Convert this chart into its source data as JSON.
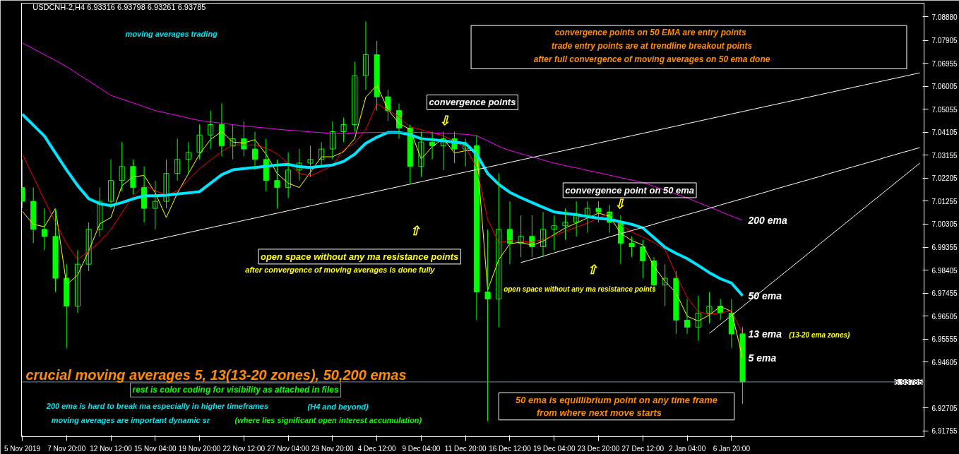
{
  "chart_data": {
    "type": "candlestick",
    "title": "USDCNH-2,H4  6.93316 6.93798 6.93261 6.93785",
    "color": "#00ff00",
    "categories": [
      "5 Nov 2019",
      null,
      null,
      null,
      "7 Nov 20:00",
      null,
      null,
      null,
      "12 Nov 12:00",
      null,
      null,
      null,
      "15 Nov 04:00",
      null,
      null,
      null,
      "19 Nov 20:00",
      null,
      null,
      null,
      "22 Nov 12:00",
      null,
      null,
      null,
      "27 Nov 04:00",
      null,
      null,
      null,
      "29 Nov 20:00",
      null,
      null,
      null,
      "4 Dec 12:00",
      null,
      null,
      null,
      "9 Dec 04:00",
      null,
      null,
      null,
      "11 Dec 20:00",
      null,
      null,
      null,
      "16 Dec 12:00",
      null,
      null,
      null,
      "19 Dec 04:00",
      null,
      null,
      null,
      "23 Dec 20:00",
      null,
      null,
      null,
      "27 Dec 12:00",
      null,
      null,
      null,
      "2 Jan 04:00",
      null,
      null,
      null,
      "6 Jan 20:00",
      null,
      null,
      null,
      null,
      null,
      null,
      null,
      null,
      null,
      null,
      null,
      null,
      null,
      null,
      null,
      null,
      null
    ],
    "ohlc": [
      [
        7.0182,
        7.0298,
        7.0096,
        7.0125
      ],
      [
        7.0125,
        7.0182,
        6.9952,
        7.0009
      ],
      [
        7.0009,
        7.0096,
        6.9923,
        6.998
      ],
      [
        6.998,
        7.0096,
        6.975,
        6.9807
      ],
      [
        6.9807,
        6.9865,
        6.9519,
        6.9692
      ],
      [
        6.9692,
        6.9923,
        6.9663,
        6.9865
      ],
      [
        6.9865,
        7.0038,
        6.9836,
        7.0009
      ],
      [
        7.0009,
        7.0182,
        6.998,
        7.0125
      ],
      [
        7.0125,
        7.0298,
        7.0096,
        7.0211
      ],
      [
        7.0211,
        7.037,
        7.0168,
        7.0269
      ],
      [
        7.0269,
        7.0298,
        7.0154,
        7.0182
      ],
      [
        7.0182,
        7.0269,
        7.0038,
        7.0096
      ],
      [
        7.0096,
        7.0211,
        7.0009,
        7.0125
      ],
      [
        7.0125,
        7.0298,
        7.0096,
        7.024
      ],
      [
        7.024,
        7.0384,
        7.0211,
        7.0298
      ],
      [
        7.0298,
        7.037,
        7.024,
        7.0327
      ],
      [
        7.0327,
        7.0442,
        7.0298,
        7.0399
      ],
      [
        7.0399,
        7.05,
        7.0341,
        7.0442
      ],
      [
        7.0442,
        7.0529,
        7.0312,
        7.0355
      ],
      [
        7.0355,
        7.0442,
        7.0298,
        7.0384
      ],
      [
        7.0384,
        7.0456,
        7.0312,
        7.0341
      ],
      [
        7.0341,
        7.0413,
        7.0254,
        7.0298
      ],
      [
        7.0298,
        7.0384,
        7.0168,
        7.0211
      ],
      [
        7.0211,
        7.0298,
        7.0096,
        7.0182
      ],
      [
        7.0182,
        7.0327,
        7.0139,
        7.0254
      ],
      [
        7.0254,
        7.0341,
        7.0211,
        7.0283
      ],
      [
        7.0283,
        7.0355,
        7.0226,
        7.0298
      ],
      [
        7.0298,
        7.037,
        7.0269,
        7.0341
      ],
      [
        7.0341,
        7.0456,
        7.0298,
        7.0413
      ],
      [
        7.0413,
        7.0471,
        7.037,
        7.0442
      ],
      [
        7.0442,
        7.0702,
        7.0413,
        7.0644
      ],
      [
        7.0644,
        7.0869,
        7.0586,
        7.0731
      ],
      [
        7.0731,
        7.0788,
        7.05,
        7.0557
      ],
      [
        7.0557,
        7.0586,
        7.0456,
        7.05
      ],
      [
        7.05,
        7.0529,
        7.0384,
        7.0428
      ],
      [
        7.0428,
        7.0442,
        7.0197,
        7.0269
      ],
      [
        7.0269,
        7.0413,
        7.0226,
        7.037
      ],
      [
        7.037,
        7.0413,
        7.0298,
        7.0355
      ],
      [
        7.0355,
        7.0413,
        7.0254,
        7.0384
      ],
      [
        7.0384,
        7.0413,
        7.0283,
        7.0341
      ],
      [
        7.0341,
        7.0384,
        7.0269,
        7.0355
      ],
      [
        7.0355,
        7.0399,
        6.9634,
        6.975
      ],
      [
        6.975,
        7.0009,
        6.9216,
        6.9721
      ],
      [
        6.9721,
        7.024,
        6.9605,
        7.0009
      ],
      [
        7.0009,
        7.0125,
        6.9865,
        6.9952
      ],
      [
        6.9952,
        7.0067,
        6.9894,
        6.998
      ],
      [
        6.998,
        7.0067,
        6.9894,
        6.9937
      ],
      [
        6.9937,
        7.0081,
        6.9894,
        7.0009
      ],
      [
        7.0009,
        7.0067,
        6.9923,
        7.0024
      ],
      [
        7.0024,
        7.0096,
        6.9966,
        7.0038
      ],
      [
        7.0038,
        7.0125,
        6.998,
        7.0067
      ],
      [
        7.0067,
        7.0125,
        6.9995,
        7.0096
      ],
      [
        7.0096,
        7.0125,
        7.0038,
        7.0081
      ],
      [
        7.0081,
        7.011,
        6.9995,
        7.0038
      ],
      [
        7.0038,
        7.0067,
        6.9865,
        6.9952
      ],
      [
        6.9952,
        6.998,
        6.9894,
        6.9937
      ],
      [
        6.9937,
        6.9966,
        6.9807,
        6.9879
      ],
      [
        6.9879,
        6.9894,
        6.975,
        6.9779
      ],
      [
        6.9779,
        6.9865,
        6.9692,
        6.9807
      ],
      [
        6.9807,
        6.9836,
        6.9577,
        6.9634
      ],
      [
        6.9634,
        6.9721,
        6.9577,
        6.9605
      ],
      [
        6.9605,
        6.9735,
        6.9548,
        6.9663
      ],
      [
        6.9663,
        6.975,
        6.962,
        6.9692
      ],
      [
        6.9692,
        6.9721,
        6.9634,
        6.9663
      ],
      [
        6.9663,
        6.9721,
        6.9519,
        6.9577
      ],
      [
        6.9577,
        6.9605,
        6.9288,
        6.93785
      ],
      null,
      null,
      null,
      null,
      null,
      null,
      null,
      null,
      null,
      null,
      null,
      null,
      null,
      null,
      null,
      null
    ],
    "series": [
      {
        "name": "5 ema",
        "type": "line",
        "color": "#ffff00",
        "values": [
          7.0084,
          7.003,
          7.002,
          7.0096,
          6.978,
          6.982,
          6.992,
          7.0032,
          7.0058,
          7.019,
          7.0226,
          7.0232,
          7.016,
          7.0058,
          7.0159,
          7.024,
          7.032,
          7.0381,
          7.0414,
          7.037,
          7.0366,
          7.038,
          7.032,
          7.024,
          7.02,
          7.0182,
          7.0245,
          7.0309,
          7.0309,
          7.033,
          7.0384,
          7.0555,
          7.0605,
          7.0504,
          7.0447,
          7.0422,
          7.03,
          7.0351,
          7.0384,
          7.0325,
          7.0334,
          7.0335,
          6.9758,
          6.9884,
          6.995,
          6.9956,
          6.9943,
          6.996,
          6.9988,
          7.0015,
          7.0035,
          7.0056,
          7.0076,
          7.0064,
          6.9993,
          6.9963,
          6.9944,
          6.9857,
          6.9794,
          6.9747,
          6.965,
          6.963,
          6.9655,
          6.969,
          6.967,
          6.9478,
          null,
          null,
          null,
          null,
          null,
          null,
          null,
          null,
          null,
          null,
          null,
          null,
          null,
          null,
          null,
          null
        ]
      },
      {
        "name": "13 ema",
        "type": "line",
        "color": "#ff0000",
        "values": [
          7.0321,
          7.0226,
          7.0131,
          7.0039,
          6.9949,
          6.9885,
          6.9917,
          6.9958,
          7.0009,
          7.0078,
          7.0146,
          7.0192,
          7.0169,
          7.015,
          7.0168,
          7.0214,
          7.026,
          7.0296,
          7.0331,
          7.0358,
          7.0358,
          7.0358,
          7.0346,
          7.0321,
          7.0281,
          7.024,
          7.023,
          7.0251,
          7.0272,
          7.0339,
          7.0366,
          7.0422,
          7.0528,
          7.0503,
          7.0475,
          7.0433,
          7.0421,
          7.0408,
          7.0396,
          7.0372,
          7.0347,
          7.0266,
          7.005,
          6.9954,
          6.9963,
          6.9959,
          6.9956,
          6.9968,
          6.9984,
          7.0001,
          7.0018,
          7.0035,
          7.0055,
          7.0076,
          7.0027,
          6.9999,
          6.9977,
          6.9955,
          6.9925,
          6.9822,
          6.9728,
          6.9669,
          6.9658,
          6.9663,
          6.9673,
          6.9577,
          null,
          null,
          null,
          null,
          null,
          null,
          null,
          null,
          null,
          null,
          null,
          null,
          null,
          null,
          null,
          null
        ]
      },
      {
        "name": "50 ema",
        "type": "line",
        "color": "#00e5ff",
        "values": [
          7.0485,
          7.044,
          7.0395,
          7.0324,
          7.0255,
          7.019,
          7.0136,
          7.0115,
          7.0107,
          7.012,
          7.0135,
          7.0148,
          7.0148,
          7.015,
          7.0155,
          7.016,
          7.0165,
          7.02,
          7.0235,
          7.0255,
          7.026,
          7.0265,
          7.027,
          7.0275,
          7.0278,
          7.0268,
          7.0265,
          7.027,
          7.0275,
          7.029,
          7.032,
          7.0365,
          7.039,
          7.041,
          7.041,
          7.04,
          7.0384,
          7.038,
          7.0375,
          7.037,
          7.0364,
          7.032,
          7.024,
          7.0195,
          7.0162,
          7.014,
          7.012,
          7.01,
          7.0081,
          7.0075,
          7.007,
          7.0062,
          7.0055,
          7.005,
          7.004,
          7.003,
          7.0015,
          6.9975,
          6.9935,
          6.991,
          6.9888,
          6.986,
          6.983,
          6.9805,
          6.9787,
          6.9735,
          null,
          null,
          null,
          null,
          null,
          null,
          null,
          null,
          null,
          null,
          null,
          null,
          null,
          null,
          null,
          null
        ]
      },
      {
        "name": "200 ema",
        "type": "line",
        "color": "#ff00ff",
        "values": [
          7.078,
          7.0756,
          7.0731,
          7.0707,
          7.0682,
          7.0652,
          7.0623,
          7.0593,
          7.0563,
          7.0547,
          7.0532,
          7.0516,
          7.05,
          7.049,
          7.048,
          7.0469,
          7.0459,
          7.0453,
          7.0448,
          7.0442,
          7.0436,
          7.0432,
          7.0428,
          7.0423,
          7.0419,
          7.0416,
          7.0412,
          7.0409,
          7.0405,
          7.0406,
          7.0408,
          7.0409,
          7.041,
          7.041,
          7.041,
          7.041,
          7.041,
          7.0408,
          7.0406,
          7.0404,
          7.0402,
          7.0396,
          7.0375,
          7.0352,
          7.0335,
          7.0322,
          7.0309,
          7.0296,
          7.0283,
          7.0273,
          7.0263,
          7.0253,
          7.0243,
          7.0233,
          7.0223,
          7.0213,
          7.0203,
          7.0187,
          7.0171,
          7.0155,
          7.0139,
          7.012,
          7.0102,
          7.0083,
          7.0064,
          7.0047,
          null,
          null,
          null,
          null,
          null,
          null,
          null,
          null,
          null,
          null,
          null,
          null,
          null,
          null,
          null,
          null
        ]
      },
      {
        "type": "line",
        "color": "#ffffff",
        "values": [
          null,
          null,
          null,
          null,
          null,
          null,
          null,
          null,
          6.9926,
          6.9936,
          6.9946,
          6.9956,
          6.9966,
          6.9976,
          6.9986,
          6.9996,
          7.0006,
          7.0016,
          7.0026,
          7.0036,
          7.0046,
          7.0056,
          7.0066,
          7.0076,
          7.0086,
          7.0096,
          7.0106,
          7.0116,
          7.0126,
          7.0136,
          7.0146,
          7.0156,
          7.0166,
          7.0176,
          7.0186,
          7.0196,
          7.0206,
          7.0216,
          7.0226,
          7.0236,
          7.0246,
          7.0256,
          7.0266,
          7.0276,
          7.0286,
          7.0296,
          7.0306,
          7.0316,
          7.0326,
          7.0336,
          7.0346,
          7.0356,
          7.0366,
          7.0376,
          7.0386,
          7.0396,
          7.0406,
          7.0416,
          7.0426,
          7.0436,
          7.0446,
          7.0456,
          7.0466,
          7.0476,
          7.0486,
          7.0496,
          7.0506,
          7.0516,
          7.0526,
          7.0536,
          7.0546,
          7.0556,
          7.0566,
          7.0576,
          7.0586,
          7.0596,
          7.0606,
          7.0616,
          7.0626,
          7.0636,
          7.0646,
          7.0656
        ]
      },
      {
        "type": "line",
        "color": "#ffffff",
        "values": [
          null,
          null,
          null,
          null,
          null,
          null,
          null,
          null,
          null,
          null,
          null,
          null,
          null,
          null,
          null,
          null,
          null,
          null,
          null,
          null,
          null,
          null,
          null,
          null,
          null,
          null,
          null,
          null,
          null,
          null,
          null,
          null,
          null,
          null,
          null,
          null,
          null,
          null,
          null,
          null,
          null,
          null,
          null,
          null,
          null,
          6.9872,
          6.9885,
          6.9898,
          6.9912,
          6.9925,
          6.9938,
          6.9951,
          6.9964,
          6.9978,
          6.9991,
          7.0004,
          7.0017,
          7.003,
          7.0044,
          7.0057,
          7.007,
          7.0083,
          7.0096,
          7.011,
          7.0123,
          7.0136,
          7.0149,
          7.0162,
          7.0176,
          7.0189,
          7.0202,
          7.0215,
          7.0228,
          7.0242,
          7.0255,
          7.0268,
          7.0281,
          7.0294,
          7.0308,
          7.0321,
          7.0334,
          7.0347
        ]
      },
      {
        "type": "line",
        "color": "#ffffff",
        "values": [
          null,
          null,
          null,
          null,
          null,
          null,
          null,
          null,
          null,
          null,
          null,
          null,
          null,
          null,
          null,
          null,
          null,
          null,
          null,
          null,
          null,
          null,
          null,
          null,
          null,
          null,
          null,
          null,
          null,
          null,
          null,
          null,
          null,
          null,
          null,
          null,
          null,
          null,
          null,
          null,
          null,
          null,
          null,
          null,
          null,
          null,
          null,
          null,
          null,
          null,
          null,
          null,
          null,
          null,
          null,
          null,
          null,
          null,
          null,
          null,
          null,
          null,
          6.9579,
          6.9616,
          6.9653,
          6.969,
          6.9727,
          6.9764,
          6.9801,
          6.9838,
          6.9875,
          6.9912,
          6.995,
          6.9987,
          7.0024,
          7.0061,
          7.0098,
          7.0135,
          7.0172,
          7.0209,
          7.0246,
          7.0283
        ]
      }
    ],
    "ylim": [
      6.9152,
      7.0944
    ],
    "yticks": [
      {
        "value": 7.0888,
        "label": "7.08880"
      },
      7.07905,
      7.06955,
      7.06005,
      7.05055,
      7.04105,
      7.03155,
      7.02205,
      7.01255,
      7.00305,
      6.99355,
      6.98405,
      6.97455,
      6.96505,
      6.95555,
      6.94605,
      6.92705,
      6.91755
    ],
    "ref_lines": [
      {
        "axis": "y",
        "value": 6.93785,
        "label": "6.93785",
        "color": "#778899"
      }
    ],
    "grid": false,
    "marker": "none",
    "line_style": "solid",
    "annotations": [
      "moving averages trading",
      "convergence points  on 50 EMA are entry points",
      "trade entry points are at trendline breakout points",
      "after full convergence of moving averages on 50 ema done",
      "convergence points",
      "⇩",
      "⇧",
      "convergence point on 50 ema",
      "⇩",
      "⇧",
      "open space without any ma resistance points",
      "after convergence of moving averages is done fully",
      "open space without any ma resistance points",
      "(13-20 ema zones)",
      "crucial moving averages 5, 13(13-20 zones), 50,200 emas",
      "rest is color coding for visibility as attached in files",
      "200 ema is hard to break ma especially in higher timeframes",
      "(H4 and beyond)",
      "moving averages are important dynamic sr",
      "(where lies significant open interest accumulation)",
      "50 ema is equillibrium point on any time frame",
      "from where next move starts"
    ]
  }
}
